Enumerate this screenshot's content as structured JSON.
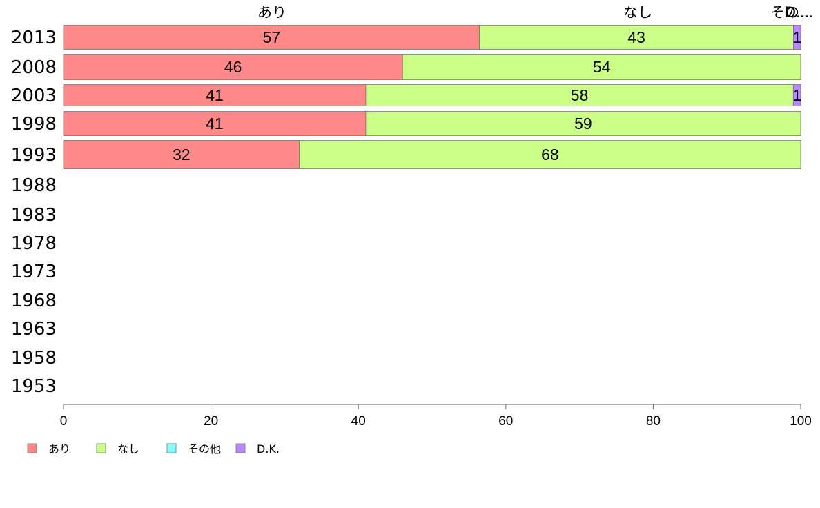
{
  "chart_data": {
    "type": "bar",
    "orientation": "horizontal",
    "stacked": true,
    "categories": [
      "2013",
      "2008",
      "2003",
      "1998",
      "1993",
      "1988",
      "1983",
      "1978",
      "1973",
      "1968",
      "1963",
      "1958",
      "1953"
    ],
    "series": [
      {
        "name": "あり",
        "color": "#ff8888",
        "values": [
          57,
          46,
          41,
          41,
          32,
          null,
          null,
          null,
          null,
          null,
          null,
          null,
          null
        ]
      },
      {
        "name": "なし",
        "color": "#ccff88",
        "values": [
          43,
          54,
          58,
          59,
          68,
          null,
          null,
          null,
          null,
          null,
          null,
          null,
          null
        ]
      },
      {
        "name": "その他",
        "color": "#88ffff",
        "values": [
          0,
          0,
          0,
          0,
          0,
          null,
          null,
          null,
          null,
          null,
          null,
          null,
          null
        ]
      },
      {
        "name": "D.K.",
        "color": "#bb88ff",
        "values": [
          1,
          0,
          1,
          0,
          0,
          null,
          null,
          null,
          null,
          null,
          null,
          null,
          null
        ]
      }
    ],
    "data_labels": [
      [
        "57",
        "43",
        "",
        "1"
      ],
      [
        "46",
        "54",
        "",
        ""
      ],
      [
        "41",
        "58",
        "",
        "1"
      ],
      [
        "41",
        "59",
        "",
        ""
      ],
      [
        "32",
        "68",
        "",
        ""
      ]
    ],
    "top_labels": [
      "あり",
      "なし",
      "その...",
      "D..."
    ],
    "x_ticks": [
      "0",
      "20",
      "40",
      "60",
      "80",
      "100"
    ],
    "xlim": [
      0,
      100
    ],
    "title": "",
    "xlabel": "",
    "ylabel": "",
    "grid": false,
    "legend": "bottom-left"
  }
}
